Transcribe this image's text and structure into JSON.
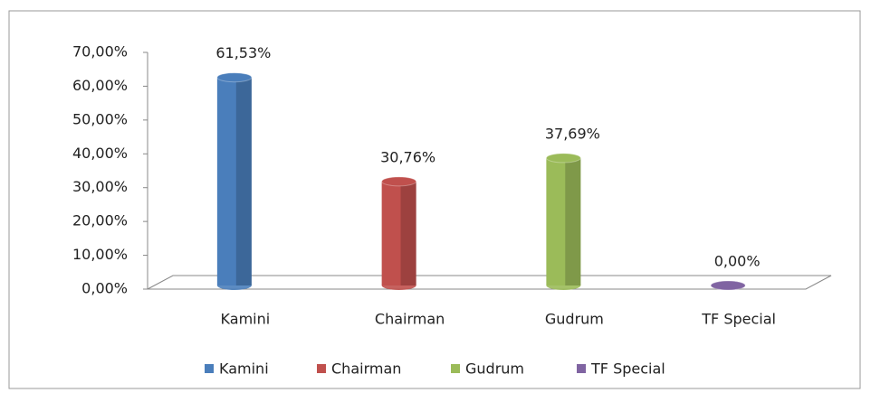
{
  "chart_data": {
    "type": "bar",
    "categories": [
      "Kamini",
      "Chairman",
      "Gudrum",
      "TF Special"
    ],
    "values": [
      61.53,
      30.76,
      37.69,
      0
    ],
    "value_labels": [
      "61,53%",
      "30,76%",
      "37,69%",
      "0,00%"
    ],
    "colors": [
      "#4a7ebb",
      "#c0504d",
      "#9bbb59",
      "#8064a2"
    ],
    "ylim": [
      0,
      70
    ],
    "yticks": [
      {
        "value": 0,
        "label": "0,00%"
      },
      {
        "value": 10,
        "label": "10,00%"
      },
      {
        "value": 20,
        "label": "20,00%"
      },
      {
        "value": 30,
        "label": "30,00%"
      },
      {
        "value": 40,
        "label": "40,00%"
      },
      {
        "value": 50,
        "label": "50,00%"
      },
      {
        "value": 60,
        "label": "60,00%"
      },
      {
        "value": 70,
        "label": "70,00%"
      }
    ],
    "grid": false,
    "legend": "bottom"
  }
}
